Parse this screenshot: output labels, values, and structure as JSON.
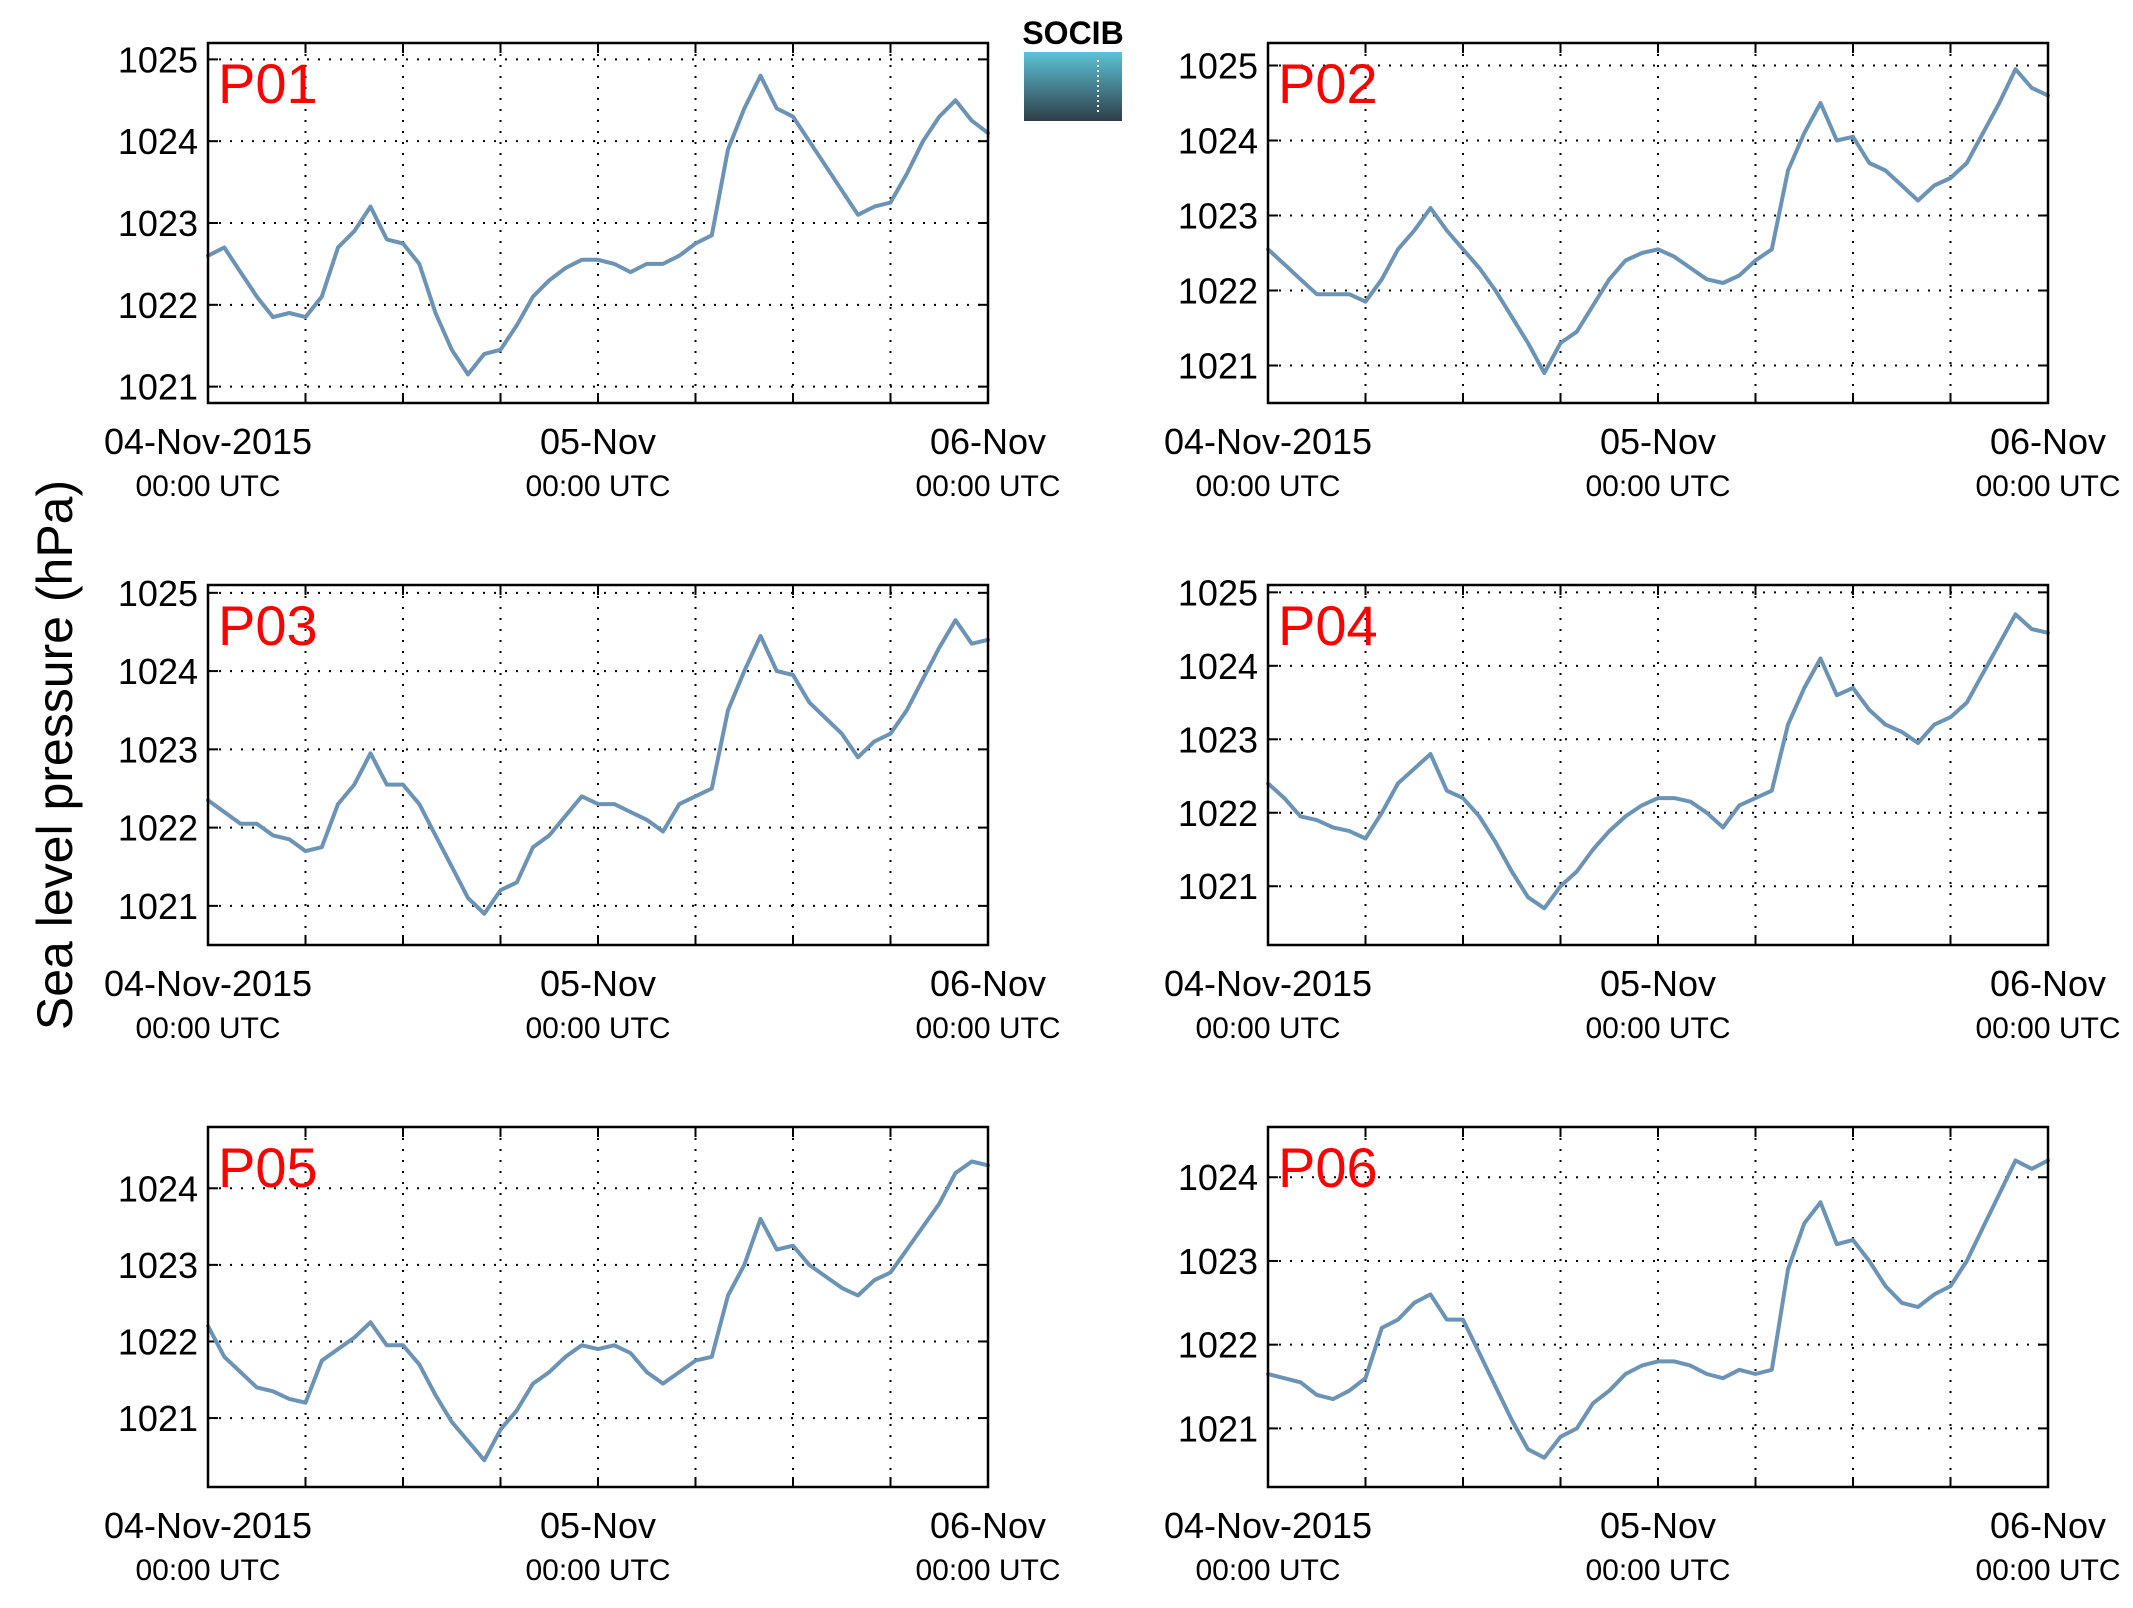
{
  "figure": {
    "ylabel": "Sea level pressure (hPa)",
    "logo_text": "SOCIB"
  },
  "colors": {
    "line": "#6b93b5",
    "panel_label": "#ff0000",
    "grid": "#000000",
    "logo_top": "#5cc3d6",
    "logo_bottom": "#2f3d48"
  },
  "chart_data": [
    {
      "type": "line",
      "title": "P01",
      "x_tick_labels": [
        {
          "x": 0,
          "main": "04-Nov-2015",
          "sub": "00:00 UTC"
        },
        {
          "x": 24,
          "main": "05-Nov",
          "sub": "00:00 UTC"
        },
        {
          "x": 48,
          "main": "06-Nov",
          "sub": "00:00 UTC"
        }
      ],
      "xlim": [
        0,
        48
      ],
      "ylim": [
        1020.8,
        1025.2
      ],
      "yticks": [
        1021,
        1022,
        1023,
        1024,
        1025
      ],
      "grid": true,
      "x": [
        0,
        1,
        2,
        3,
        4,
        5,
        6,
        7,
        8,
        9,
        10,
        11,
        12,
        13,
        14,
        15,
        16,
        17,
        18,
        19,
        20,
        21,
        22,
        23,
        24,
        25,
        26,
        27,
        28,
        29,
        30,
        31,
        32,
        33,
        34,
        35,
        36,
        37,
        38,
        39,
        40,
        41,
        42,
        43,
        44,
        45,
        46,
        47,
        48
      ],
      "values": [
        1022.6,
        1022.7,
        1022.4,
        1022.1,
        1021.85,
        1021.9,
        1021.85,
        1022.1,
        1022.7,
        1022.9,
        1023.2,
        1022.8,
        1022.75,
        1022.5,
        1021.9,
        1021.45,
        1021.15,
        1021.4,
        1021.45,
        1021.75,
        1022.1,
        1022.3,
        1022.45,
        1022.55,
        1022.55,
        1022.5,
        1022.4,
        1022.5,
        1022.5,
        1022.6,
        1022.75,
        1022.85,
        1023.9,
        1024.4,
        1024.8,
        1024.4,
        1024.3,
        1024.0,
        1023.7,
        1023.4,
        1023.1,
        1023.2,
        1023.25,
        1023.6,
        1024.0,
        1024.3,
        1024.5,
        1024.25,
        1024.1
      ]
    },
    {
      "type": "line",
      "title": "P02",
      "x_tick_labels": [
        {
          "x": 0,
          "main": "04-Nov-2015",
          "sub": "00:00 UTC"
        },
        {
          "x": 24,
          "main": "05-Nov",
          "sub": "00:00 UTC"
        },
        {
          "x": 48,
          "main": "06-Nov",
          "sub": "00:00 UTC"
        }
      ],
      "xlim": [
        0,
        48
      ],
      "ylim": [
        1020.5,
        1025.3
      ],
      "yticks": [
        1021,
        1022,
        1023,
        1024,
        1025
      ],
      "grid": true,
      "x": [
        0,
        1,
        2,
        3,
        4,
        5,
        6,
        7,
        8,
        9,
        10,
        11,
        12,
        13,
        14,
        15,
        16,
        17,
        18,
        19,
        20,
        21,
        22,
        23,
        24,
        25,
        26,
        27,
        28,
        29,
        30,
        31,
        32,
        33,
        34,
        35,
        36,
        37,
        38,
        39,
        40,
        41,
        42,
        43,
        44,
        45,
        46,
        47,
        48
      ],
      "values": [
        1022.55,
        1022.35,
        1022.15,
        1021.95,
        1021.95,
        1021.95,
        1021.85,
        1022.15,
        1022.55,
        1022.8,
        1023.1,
        1022.8,
        1022.55,
        1022.3,
        1022.0,
        1021.65,
        1021.3,
        1020.9,
        1021.3,
        1021.45,
        1021.8,
        1022.15,
        1022.4,
        1022.5,
        1022.55,
        1022.45,
        1022.3,
        1022.15,
        1022.1,
        1022.2,
        1022.4,
        1022.55,
        1023.6,
        1024.1,
        1024.5,
        1024.0,
        1024.05,
        1023.7,
        1023.6,
        1023.4,
        1023.2,
        1023.4,
        1023.5,
        1023.7,
        1024.1,
        1024.5,
        1024.95,
        1024.7,
        1024.6
      ]
    },
    {
      "type": "line",
      "title": "P03",
      "x_tick_labels": [
        {
          "x": 0,
          "main": "04-Nov-2015",
          "sub": "00:00 UTC"
        },
        {
          "x": 24,
          "main": "05-Nov",
          "sub": "00:00 UTC"
        },
        {
          "x": 48,
          "main": "06-Nov",
          "sub": "00:00 UTC"
        }
      ],
      "xlim": [
        0,
        48
      ],
      "ylim": [
        1020.5,
        1025.1
      ],
      "yticks": [
        1021,
        1022,
        1023,
        1024,
        1025
      ],
      "grid": true,
      "x": [
        0,
        1,
        2,
        3,
        4,
        5,
        6,
        7,
        8,
        9,
        10,
        11,
        12,
        13,
        14,
        15,
        16,
        17,
        18,
        19,
        20,
        21,
        22,
        23,
        24,
        25,
        26,
        27,
        28,
        29,
        30,
        31,
        32,
        33,
        34,
        35,
        36,
        37,
        38,
        39,
        40,
        41,
        42,
        43,
        44,
        45,
        46,
        47,
        48
      ],
      "values": [
        1022.35,
        1022.2,
        1022.05,
        1022.05,
        1021.9,
        1021.85,
        1021.7,
        1021.75,
        1022.3,
        1022.55,
        1022.95,
        1022.55,
        1022.55,
        1022.3,
        1021.9,
        1021.5,
        1021.1,
        1020.9,
        1021.2,
        1021.3,
        1021.75,
        1021.9,
        1022.15,
        1022.4,
        1022.3,
        1022.3,
        1022.2,
        1022.1,
        1021.95,
        1022.3,
        1022.4,
        1022.5,
        1023.5,
        1024.0,
        1024.45,
        1024.0,
        1023.95,
        1023.6,
        1023.4,
        1023.2,
        1022.9,
        1023.1,
        1023.2,
        1023.5,
        1023.9,
        1024.3,
        1024.65,
        1024.35,
        1024.4
      ]
    },
    {
      "type": "line",
      "title": "P04",
      "x_tick_labels": [
        {
          "x": 0,
          "main": "04-Nov-2015",
          "sub": "00:00 UTC"
        },
        {
          "x": 24,
          "main": "05-Nov",
          "sub": "00:00 UTC"
        },
        {
          "x": 48,
          "main": "06-Nov",
          "sub": "00:00 UTC"
        }
      ],
      "xlim": [
        0,
        48
      ],
      "ylim": [
        1020.2,
        1025.1
      ],
      "yticks": [
        1021,
        1022,
        1023,
        1024,
        1025
      ],
      "grid": true,
      "x": [
        0,
        1,
        2,
        3,
        4,
        5,
        6,
        7,
        8,
        9,
        10,
        11,
        12,
        13,
        14,
        15,
        16,
        17,
        18,
        19,
        20,
        21,
        22,
        23,
        24,
        25,
        26,
        27,
        28,
        29,
        30,
        31,
        32,
        33,
        34,
        35,
        36,
        37,
        38,
        39,
        40,
        41,
        42,
        43,
        44,
        45,
        46,
        47,
        48
      ],
      "values": [
        1022.4,
        1022.2,
        1021.95,
        1021.9,
        1021.8,
        1021.75,
        1021.65,
        1022.0,
        1022.4,
        1022.6,
        1022.8,
        1022.3,
        1022.2,
        1021.95,
        1021.6,
        1021.2,
        1020.85,
        1020.7,
        1021.0,
        1021.2,
        1021.5,
        1021.75,
        1021.95,
        1022.1,
        1022.2,
        1022.2,
        1022.15,
        1022.0,
        1021.8,
        1022.1,
        1022.2,
        1022.3,
        1023.2,
        1023.7,
        1024.1,
        1023.6,
        1023.7,
        1023.4,
        1023.2,
        1023.1,
        1022.95,
        1023.2,
        1023.3,
        1023.5,
        1023.9,
        1024.3,
        1024.7,
        1024.5,
        1024.45
      ]
    },
    {
      "type": "line",
      "title": "P05",
      "x_tick_labels": [
        {
          "x": 0,
          "main": "04-Nov-2015",
          "sub": "00:00 UTC"
        },
        {
          "x": 24,
          "main": "05-Nov",
          "sub": "00:00 UTC"
        },
        {
          "x": 48,
          "main": "06-Nov",
          "sub": "00:00 UTC"
        }
      ],
      "xlim": [
        0,
        48
      ],
      "ylim": [
        1020.1,
        1024.8
      ],
      "yticks": [
        1021,
        1022,
        1023,
        1024
      ],
      "grid": true,
      "x": [
        0,
        1,
        2,
        3,
        4,
        5,
        6,
        7,
        8,
        9,
        10,
        11,
        12,
        13,
        14,
        15,
        16,
        17,
        18,
        19,
        20,
        21,
        22,
        23,
        24,
        25,
        26,
        27,
        28,
        29,
        30,
        31,
        32,
        33,
        34,
        35,
        36,
        37,
        38,
        39,
        40,
        41,
        42,
        43,
        44,
        45,
        46,
        47,
        48
      ],
      "values": [
        1022.2,
        1021.8,
        1021.6,
        1021.4,
        1021.35,
        1021.25,
        1021.2,
        1021.75,
        1021.9,
        1022.05,
        1022.25,
        1021.95,
        1021.95,
        1021.7,
        1021.3,
        1020.95,
        1020.7,
        1020.45,
        1020.85,
        1021.1,
        1021.45,
        1021.6,
        1021.8,
        1021.95,
        1021.9,
        1021.95,
        1021.85,
        1021.6,
        1021.45,
        1021.6,
        1021.75,
        1021.8,
        1022.6,
        1023.0,
        1023.6,
        1023.2,
        1023.25,
        1023.0,
        1022.85,
        1022.7,
        1022.6,
        1022.8,
        1022.9,
        1023.2,
        1023.5,
        1023.8,
        1024.2,
        1024.35,
        1024.3
      ]
    },
    {
      "type": "line",
      "title": "P06",
      "x_tick_labels": [
        {
          "x": 0,
          "main": "04-Nov-2015",
          "sub": "00:00 UTC"
        },
        {
          "x": 24,
          "main": "05-Nov",
          "sub": "00:00 UTC"
        },
        {
          "x": 48,
          "main": "06-Nov",
          "sub": "00:00 UTC"
        }
      ],
      "xlim": [
        0,
        48
      ],
      "ylim": [
        1020.3,
        1024.6
      ],
      "yticks": [
        1021,
        1022,
        1023,
        1024
      ],
      "grid": true,
      "x": [
        0,
        1,
        2,
        3,
        4,
        5,
        6,
        7,
        8,
        9,
        10,
        11,
        12,
        13,
        14,
        15,
        16,
        17,
        18,
        19,
        20,
        21,
        22,
        23,
        24,
        25,
        26,
        27,
        28,
        29,
        30,
        31,
        32,
        33,
        34,
        35,
        36,
        37,
        38,
        39,
        40,
        41,
        42,
        43,
        44,
        45,
        46,
        47,
        48
      ],
      "values": [
        1021.65,
        1021.6,
        1021.55,
        1021.4,
        1021.35,
        1021.45,
        1021.6,
        1022.2,
        1022.3,
        1022.5,
        1022.6,
        1022.3,
        1022.3,
        1021.9,
        1021.5,
        1021.1,
        1020.75,
        1020.65,
        1020.9,
        1021.0,
        1021.3,
        1021.45,
        1021.65,
        1021.75,
        1021.8,
        1021.8,
        1021.75,
        1021.65,
        1021.6,
        1021.7,
        1021.65,
        1021.7,
        1022.9,
        1023.45,
        1023.7,
        1023.2,
        1023.25,
        1023.0,
        1022.7,
        1022.5,
        1022.45,
        1022.6,
        1022.7,
        1023.0,
        1023.4,
        1023.8,
        1024.2,
        1024.1,
        1024.2
      ]
    }
  ]
}
